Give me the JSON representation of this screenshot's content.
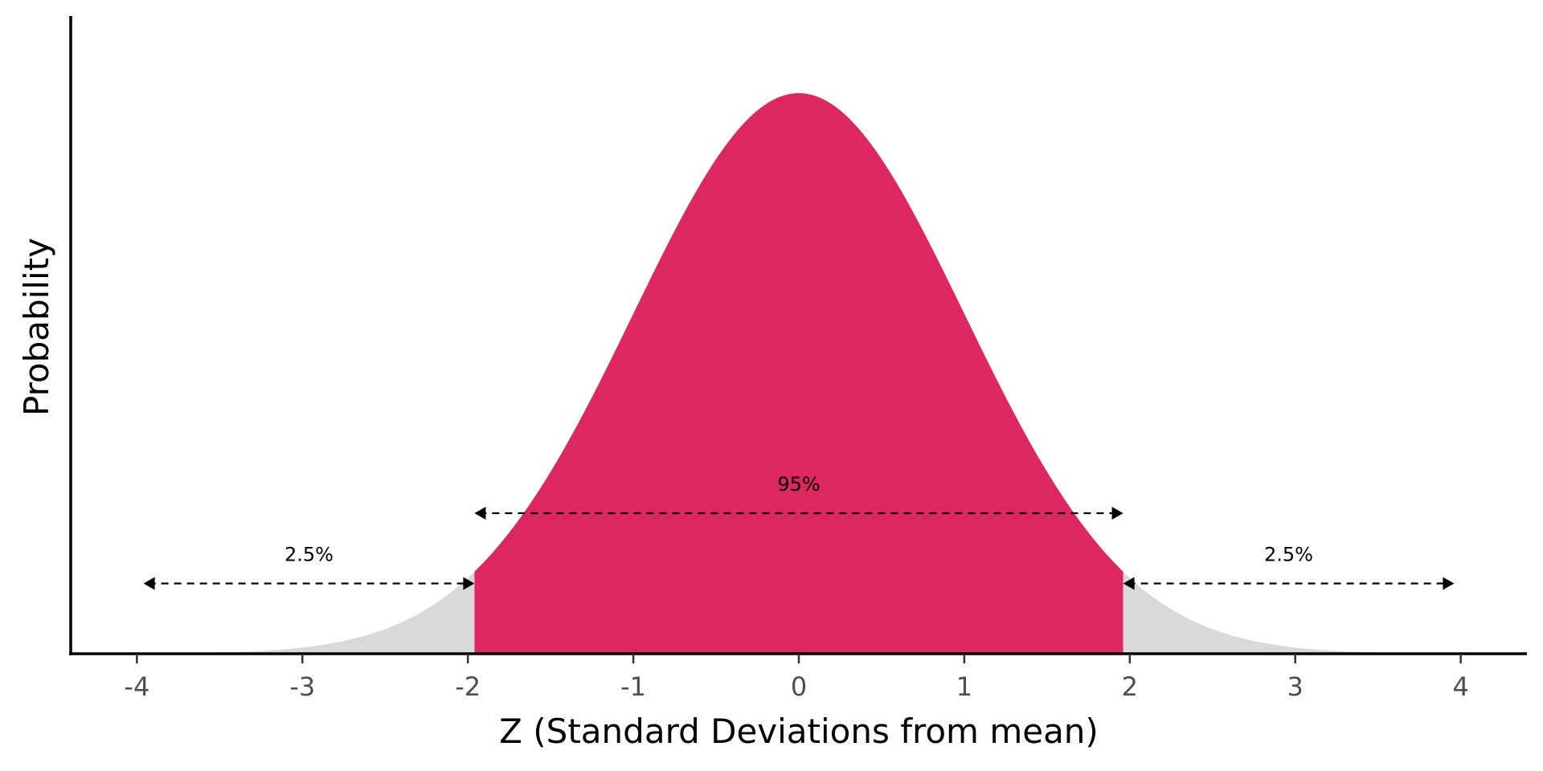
{
  "chart_data": {
    "type": "area",
    "distribution": "standard normal density",
    "x_range": [
      -4.4,
      4.4
    ],
    "xlim": [
      -4.4,
      4.4
    ],
    "ylim": [
      0,
      0.4
    ],
    "xticks": [
      -4,
      -3,
      -2,
      -1,
      0,
      1,
      2,
      3,
      4
    ],
    "tick_labels": [
      "-4",
      "-3",
      "-2",
      "-1",
      "0",
      "1",
      "2",
      "3",
      "4"
    ],
    "xlabel": "Z (Standard Deviations from mean)",
    "ylabel": "Probability",
    "y_ticks_shown": false,
    "grid": false,
    "legend": "none",
    "regions": [
      {
        "from": -4.4,
        "to": -1.96,
        "color": "#d9d9d9"
      },
      {
        "from": -1.96,
        "to": 1.96,
        "color": "#dc275f"
      },
      {
        "from": 1.96,
        "to": 4.4,
        "color": "#d9d9d9"
      }
    ],
    "annotations": [
      {
        "label": "2.5%",
        "x_from": -3.96,
        "x_to": -1.96,
        "y": 0.05
      },
      {
        "label": "95%",
        "x_from": -1.96,
        "x_to": 1.96,
        "y": 0.1
      },
      {
        "label": "2.5%",
        "x_from": 1.96,
        "x_to": 3.96,
        "y": 0.05
      }
    ]
  }
}
